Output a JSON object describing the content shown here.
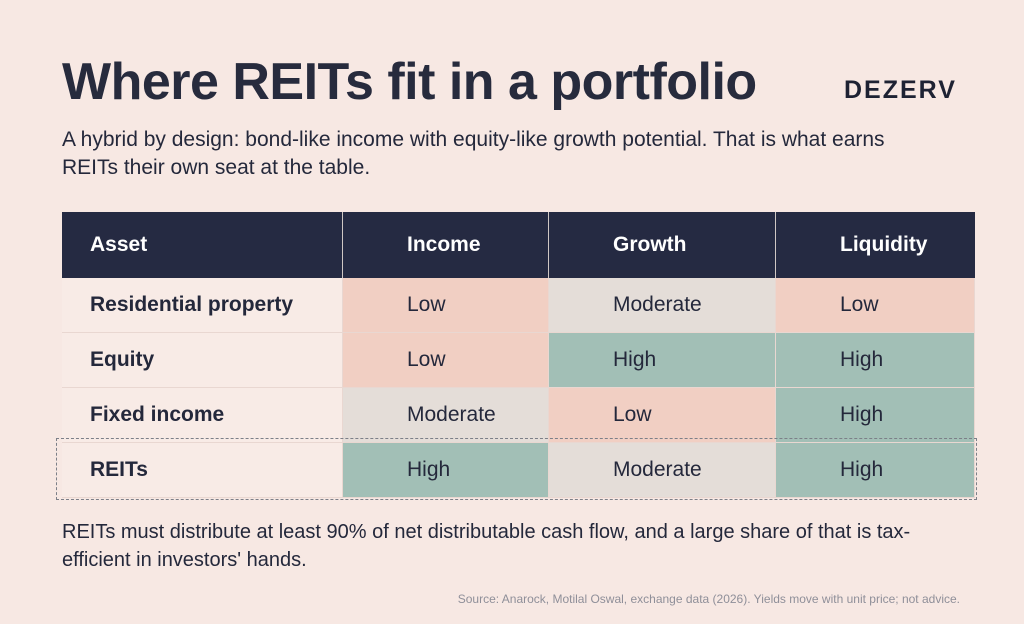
{
  "title": "Where REITs fit in a portfolio",
  "logo": "DEZERV",
  "subtitle": "A hybrid by design: bond-like income with equity-like growth potential. That is what earns REITs their own seat at the table.",
  "table": {
    "headers": [
      "Asset",
      "Income",
      "Growth",
      "Liquidity"
    ],
    "rows": [
      {
        "asset": "Residential property",
        "income": "Low",
        "growth": "Moderate",
        "liquidity": "Low"
      },
      {
        "asset": "Equity",
        "income": "Low",
        "growth": "High",
        "liquidity": "High"
      },
      {
        "asset": "Fixed income",
        "income": "Moderate",
        "growth": "Low",
        "liquidity": "High"
      },
      {
        "asset": "REITs",
        "income": "High",
        "growth": "Moderate",
        "liquidity": "High",
        "highlighted": true
      }
    ]
  },
  "level_colors": {
    "Low": "#f1cfc3",
    "Moderate": "#e4ddd8",
    "High": "#a2bfb6"
  },
  "header_color": "#252a42",
  "note": "REITs must distribute at least 90% of net distributable cash flow, and a large share of that is tax-efficient in investors' hands.",
  "source": "Source: Anarock, Motilal Oswal, exchange data (2026). Yields move with unit price; not advice."
}
